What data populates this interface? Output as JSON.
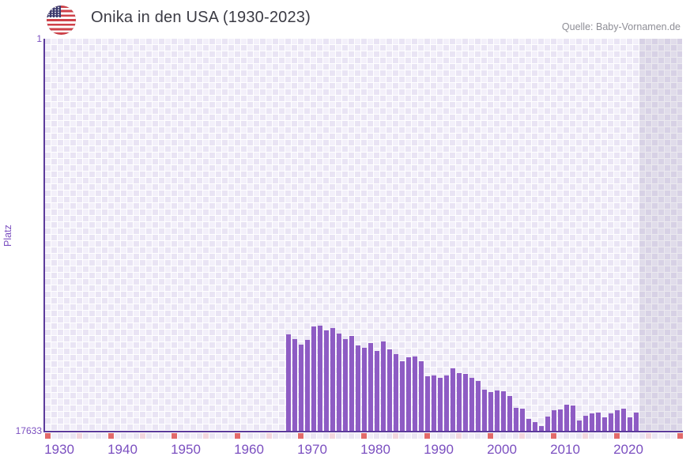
{
  "header": {
    "title": "Onika in den USA (1930-2023)",
    "source": "Quelle: Baby-Vornamen.de",
    "flag_icon": "usa-flag"
  },
  "chart_data": {
    "type": "bar",
    "title": "Onika in den USA (1930-2023)",
    "xlabel": "",
    "ylabel": "Platz",
    "y_axis": {
      "min": 1,
      "max": 17633,
      "top_label": "1",
      "bottom_label": "17633",
      "inverted": true
    },
    "x_axis": {
      "grid_start_year": 1928,
      "grid_end_year": 2028,
      "tick_labels": [
        "1930",
        "1940",
        "1950",
        "1960",
        "1970",
        "1980",
        "1990",
        "2000",
        "2010",
        "2020"
      ]
    },
    "no_data_band": {
      "from_year": 2022,
      "to_year": 2028
    },
    "grid": true,
    "legend": "none",
    "series": [
      {
        "name": "Platz",
        "years": [
          1966,
          1967,
          1968,
          1969,
          1970,
          1971,
          1972,
          1973,
          1974,
          1975,
          1976,
          1977,
          1978,
          1979,
          1980,
          1981,
          1982,
          1983,
          1984,
          1985,
          1986,
          1987,
          1988,
          1989,
          1990,
          1991,
          1992,
          1993,
          1994,
          1995,
          1996,
          1997,
          1998,
          1999,
          2000,
          2001,
          2002,
          2003,
          2004,
          2005,
          2006,
          2007,
          2008,
          2009,
          2010,
          2011,
          2012,
          2013,
          2014,
          2015,
          2016,
          2017,
          2018,
          2019,
          2020,
          2021
        ],
        "ranks": [
          13280,
          13520,
          13740,
          13560,
          12950,
          12915,
          13130,
          12995,
          13260,
          13500,
          13370,
          13785,
          13900,
          13700,
          14045,
          13630,
          13985,
          14195,
          14515,
          14315,
          14305,
          14495,
          15180,
          15145,
          15240,
          15145,
          14825,
          15030,
          15065,
          15240,
          15405,
          15775,
          15890,
          15830,
          15855,
          16060,
          16615,
          16630,
          17100,
          17255,
          17420,
          16985,
          16720,
          16685,
          16460,
          16505,
          17160,
          16960,
          16850,
          16805,
          17040,
          16860,
          16720,
          16650,
          17020,
          16810
        ]
      }
    ],
    "colors": {
      "bar": "#8e5cc4",
      "axis": "#5b3a9b",
      "grid_light": "#f3f0fa",
      "grid_dark": "#e9e4f4",
      "band_tint": "rgba(103,86,128,0.13)",
      "tick_label": "#7b4fc0",
      "marker_red": "#e26a6a",
      "marker_pink": "#f3d6de",
      "strip_even": "#eae5f3",
      "strip_odd": "#f1eef8",
      "title_text": "#3b3b44",
      "source_text": "#8e8e96"
    }
  }
}
